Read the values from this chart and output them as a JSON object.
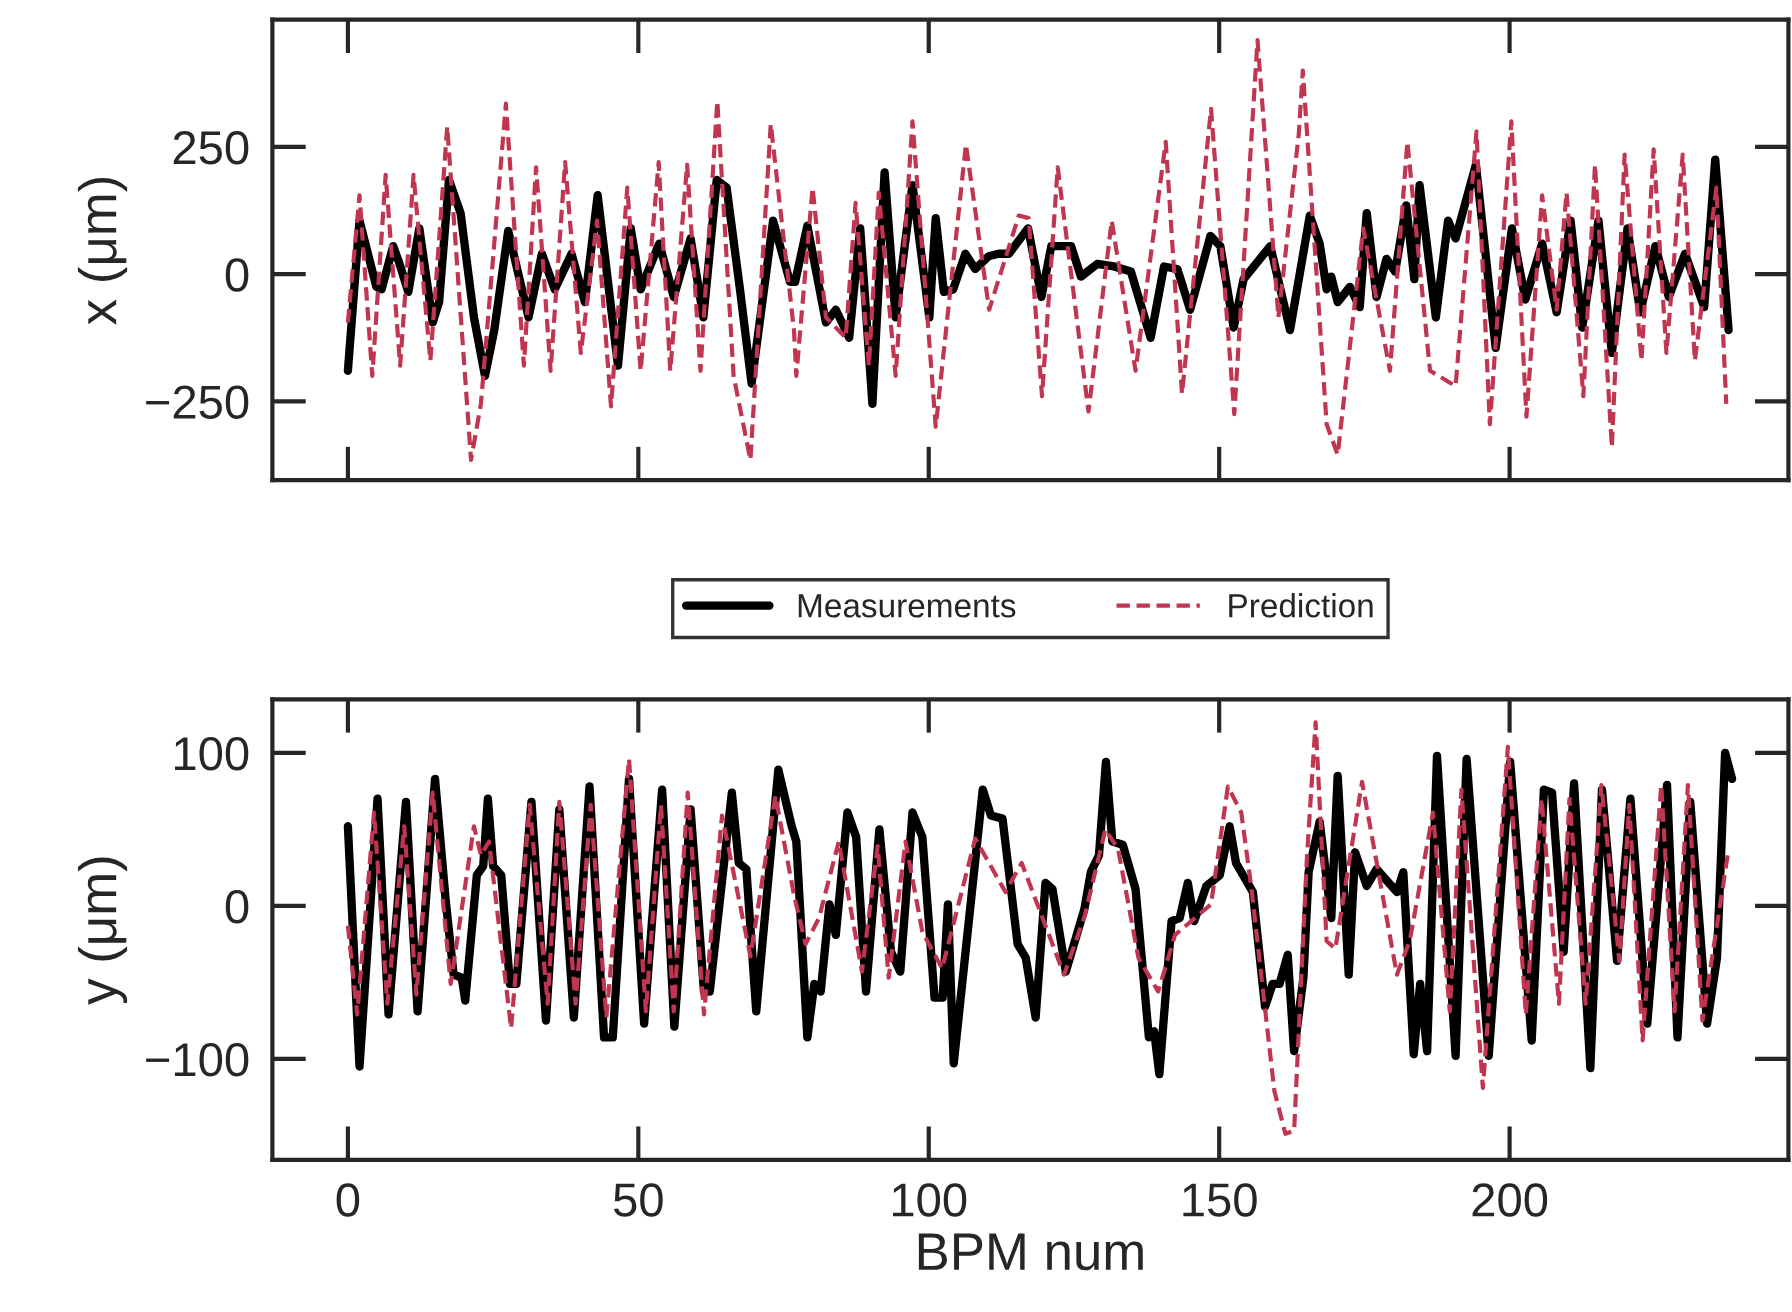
{
  "chart_data": [
    {
      "type": "line",
      "ylabel": "x (μm)",
      "xlim": [
        -13,
        248
      ],
      "xticks": [
        0,
        50,
        100,
        150,
        200
      ],
      "ylim": [
        -405,
        500
      ],
      "yticks": [
        {
          "value": -250,
          "label": "−250"
        },
        0,
        250
      ],
      "tick_labels": "y",
      "legend": "bottom",
      "grid": false,
      "series": [
        {
          "name": "Measurements",
          "color": "#000000",
          "line_style": "solid",
          "x": [
            0,
            2,
            3,
            4.9,
            5.8,
            7.8,
            8.9,
            10.4,
            12.3,
            14.6,
            15.7,
            17.4,
            19.4,
            21.7,
            23.6,
            25.2,
            27.6,
            31.1,
            33.4,
            35.6,
            38.5,
            40.8,
            43,
            46.5,
            48.7,
            50.4,
            53.6,
            56.1,
            59,
            61.2,
            63.5,
            65.2,
            67.5,
            69.5,
            73.2,
            76.1,
            77,
            79.1,
            82.3,
            84,
            86.3,
            88.2,
            90.3,
            92.4,
            94.3,
            97.2,
            100.1,
            101.2,
            102.6,
            104.2,
            106.3,
            108,
            110.3,
            112,
            113.8,
            117.1,
            119.4,
            121.1,
            124.5,
            126.2,
            129,
            131.9,
            134.8,
            138.2,
            140.5,
            142.8,
            145,
            148.5,
            150.2,
            152.5,
            154.2,
            158.8,
            162.2,
            165.6,
            167.3,
            168.5,
            169.3,
            170.4,
            172.5,
            174.2,
            175.4,
            177.1,
            178.8,
            180.3,
            182.2,
            183.6,
            184.5,
            187.3,
            189.4,
            190.7,
            194.2,
            197.6,
            200.4,
            202.7,
            205.6,
            208.1,
            210.5,
            212.5,
            215.3,
            217.6,
            220.3,
            222.5,
            225.1,
            227.4,
            230.2,
            233.5,
            235.4,
            237.7
          ],
          "values": [
            -190,
            105,
            60,
            -25,
            -30,
            55,
            20,
            -35,
            90,
            -95,
            -55,
            185,
            120,
            -85,
            -200,
            -110,
            85,
            -85,
            40,
            -30,
            40,
            -55,
            155,
            -180,
            90,
            -30,
            60,
            -45,
            70,
            -85,
            185,
            170,
            -30,
            -215,
            105,
            -15,
            -15,
            95,
            -95,
            -70,
            -125,
            90,
            -255,
            200,
            -85,
            175,
            -85,
            110,
            -35,
            -30,
            40,
            10,
            35,
            40,
            40,
            90,
            -45,
            55,
            55,
            -5,
            20,
            15,
            5,
            -125,
            15,
            10,
            -70,
            75,
            55,
            -105,
            -10,
            55,
            -110,
            115,
            60,
            -30,
            -5,
            -55,
            -25,
            -65,
            120,
            -45,
            30,
            5,
            135,
            -10,
            175,
            -85,
            105,
            70,
            215,
            -145,
            90,
            -50,
            60,
            -75,
            105,
            -105,
            105,
            -155,
            90,
            -75,
            55,
            -45,
            40,
            -65,
            225,
            -110
          ]
        },
        {
          "name": "Prediction",
          "color": "#c0354f",
          "line_style": "dashed",
          "x": [
            0,
            2,
            4.2,
            6.5,
            9,
            11.3,
            14.2,
            17.1,
            21.2,
            22.9,
            27.2,
            30.3,
            32.4,
            34.9,
            37.4,
            40.1,
            42.9,
            45.3,
            48.1,
            50.4,
            53.5,
            55.5,
            58.4,
            60.7,
            63.6,
            66.4,
            69.3,
            72.8,
            76.8,
            77.2,
            80,
            82.3,
            85.7,
            87.4,
            89.7,
            91.4,
            94.3,
            97.2,
            101.2,
            106.4,
            110.4,
            115.5,
            117.2,
            119.5,
            122.2,
            127.5,
            131.5,
            135.6,
            140.8,
            143.6,
            148.6,
            152.6,
            156.6,
            160.2,
            163.7,
            164.4,
            168.5,
            170.4,
            174.8,
            179.4,
            182.4,
            186.3,
            190.7,
            194.3,
            196.6,
            200.3,
            202.9,
            205.6,
            208.1,
            209.8,
            212.7,
            214.7,
            217.6,
            219.8,
            222.7,
            224.8,
            227,
            229.8,
            231.9,
            235.6,
            237.3
          ],
          "values": [
            -95,
            155,
            -200,
            195,
            -180,
            195,
            -170,
            290,
            -365,
            -255,
            335,
            -180,
            210,
            -190,
            220,
            -155,
            105,
            -260,
            170,
            -190,
            220,
            -190,
            215,
            -190,
            340,
            -200,
            -365,
            295,
            -110,
            -200,
            170,
            -85,
            -125,
            140,
            -180,
            160,
            -200,
            300,
            -300,
            255,
            -70,
            115,
            110,
            -240,
            210,
            -270,
            105,
            -190,
            260,
            -235,
            325,
            -275,
            460,
            -85,
            275,
            400,
            -295,
            -355,
            90,
            -190,
            260,
            -190,
            -220,
            280,
            -295,
            300,
            -280,
            155,
            -70,
            160,
            -240,
            215,
            -340,
            235,
            -170,
            245,
            -155,
            235,
            -170,
            170,
            -255
          ]
        }
      ]
    },
    {
      "type": "line",
      "xlabel": "BPM num",
      "ylabel": "y (μm)",
      "xlim": [
        -13,
        248
      ],
      "xticks": [
        0,
        50,
        100,
        150,
        200
      ],
      "ylim": [
        -166,
        135
      ],
      "yticks": [
        {
          "value": -100,
          "label": "−100"
        },
        0,
        100
      ],
      "grid": false,
      "series": [
        {
          "color": "#000000",
          "line_style": "solid",
          "x": [
            0,
            2,
            5.1,
            7,
            10,
            12,
            15,
            16.8,
            18.2,
            19.6,
            20.2,
            22.2,
            23.3,
            24.1,
            25,
            26.4,
            27.9,
            29,
            31.6,
            34.1,
            36.4,
            38.9,
            41.6,
            44.1,
            45.6,
            48.4,
            51,
            54.1,
            56.2,
            59,
            61.3,
            62.3,
            66.1,
            67.3,
            68.6,
            70.3,
            74.1,
            76.4,
            77.2,
            79.1,
            80.3,
            81.4,
            82.9,
            84,
            86,
            87.5,
            89.2,
            91.5,
            93.5,
            95.1,
            97.2,
            98.9,
            101,
            102.4,
            103.3,
            104.3,
            109.3,
            110.7,
            112.7,
            115.3,
            116.7,
            118.4,
            120.1,
            121.3,
            123.6,
            126.8,
            127.9,
            129.3,
            130.5,
            131.6,
            133.4,
            135.6,
            137.9,
            138.8,
            139.7,
            141.8,
            143.2,
            144.6,
            145.7,
            147.8,
            150.1,
            151.8,
            152.9,
            155.8,
            157.9,
            159.2,
            160.4,
            161.8,
            162.9,
            164.5,
            165.4,
            167.3,
            169.3,
            170.4,
            172.3,
            173.4,
            175.4,
            177.1,
            180.6,
            181.7,
            183.5,
            184.6,
            185.8,
            187.5,
            190.7,
            192.6,
            196.4,
            200.1,
            203.8,
            205.9,
            207.3,
            209.3,
            211.1,
            213.9,
            215.9,
            218.5,
            220.8,
            223.7,
            227.1,
            228.9,
            231.1,
            234,
            235.7,
            237.1,
            238.3
          ],
          "values": [
            52,
            -105,
            70,
            -71,
            68,
            -69,
            83,
            5,
            -45,
            -47,
            -62,
            20,
            26,
            70,
            26,
            20,
            -51,
            -51,
            68,
            -75,
            63,
            -73,
            78,
            -86,
            -86,
            83,
            -77,
            76,
            -79,
            63,
            -56,
            -56,
            74,
            28,
            24,
            -69,
            89,
            52,
            42,
            -86,
            -51,
            -56,
            1,
            -19,
            61,
            45,
            -56,
            50,
            -30,
            -43,
            61,
            45,
            -60,
            -60,
            1,
            -103,
            76,
            59,
            57,
            -25,
            -34,
            -73,
            15,
            11,
            -43,
            -2,
            22,
            33,
            94,
            42,
            40,
            11,
            -86,
            -82,
            -110,
            -10,
            -8,
            15,
            -10,
            13,
            20,
            52,
            28,
            9,
            -66,
            -51,
            -51,
            -32,
            -95,
            -47,
            22,
            55,
            -8,
            85,
            -45,
            35,
            13,
            24,
            9,
            22,
            -97,
            -51,
            -95,
            98,
            -98,
            96,
            -98,
            94,
            -88,
            76,
            74,
            -30,
            80,
            -106,
            76,
            -36,
            70,
            -77,
            79,
            -86,
            68,
            -77,
            -34,
            100,
            83
          ]
        },
        {
          "color": "#c0354f",
          "line_style": "dashed",
          "x": [
            0,
            1.6,
            4.5,
            6.8,
            9.7,
            11.8,
            14.6,
            17.7,
            21.7,
            22.9,
            24.3,
            28.1,
            31.3,
            34.4,
            36.4,
            39.2,
            41.8,
            44.5,
            48.4,
            51.3,
            53.9,
            56.1,
            58.5,
            61.3,
            64.4,
            69.3,
            73.6,
            76.8,
            78.8,
            81.1,
            84.5,
            88.5,
            91.2,
            93.1,
            96,
            98.9,
            102.3,
            108,
            113.2,
            116,
            123.3,
            126.9,
            130.4,
            132.6,
            136.1,
            139.5,
            142.4,
            148.6,
            151.5,
            153.8,
            155.5,
            159.5,
            161.4,
            162.9,
            165.1,
            166.6,
            168.5,
            170,
            174.6,
            180.6,
            182.8,
            186.8,
            189.7,
            191.7,
            195.4,
            199.7,
            202.8,
            205.5,
            208.5,
            210.3,
            213.1,
            215.8,
            218.9,
            220.6,
            222.9,
            226.1,
            228.4,
            230.7,
            233.2,
            237.7
          ],
          "values": [
            -13,
            -71,
            61,
            -64,
            52,
            -58,
            74,
            -51,
            52,
            33,
            42,
            -80,
            66,
            -64,
            68,
            -64,
            66,
            -73,
            96,
            -69,
            66,
            -69,
            74,
            -71,
            59,
            -33,
            72,
            7,
            -25,
            -8,
            42,
            -43,
            39,
            -47,
            42,
            -17,
            -41,
            44,
            9,
            28,
            -45,
            -6,
            50,
            37,
            -34,
            -56,
            -19,
            1,
            78,
            61,
            13,
            -121,
            -149,
            -147,
            31,
            120,
            -23,
            -28,
            81,
            -45,
            -23,
            61,
            -69,
            76,
            -119,
            104,
            -71,
            70,
            -64,
            70,
            -64,
            79,
            -36,
            66,
            -88,
            79,
            -69,
            79,
            -75,
            37
          ]
        }
      ]
    }
  ]
}
